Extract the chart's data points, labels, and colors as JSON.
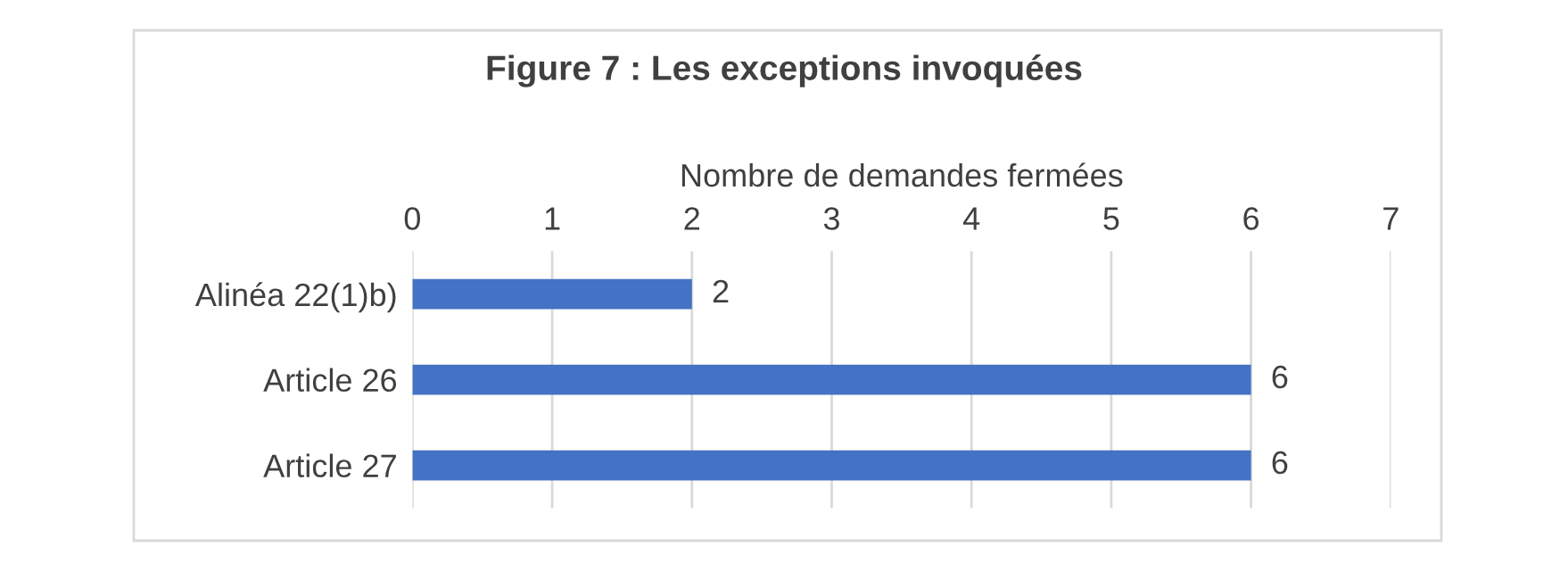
{
  "chart_data": {
    "type": "bar",
    "orientation": "horizontal",
    "title": "Figure 7 : Les exceptions invoquées",
    "xlabel": "Nombre de demandes fermées",
    "categories": [
      "Alinéa 22(1)b)",
      "Article 26",
      "Article 27"
    ],
    "series": [
      {
        "color": "#4472c4",
        "values": [
          2,
          6,
          6
        ]
      }
    ],
    "xlim": [
      0,
      7
    ],
    "xticks": [
      0,
      1,
      2,
      3,
      4,
      5,
      6,
      7
    ],
    "grid": "x",
    "data_labels": true,
    "legend": false
  }
}
